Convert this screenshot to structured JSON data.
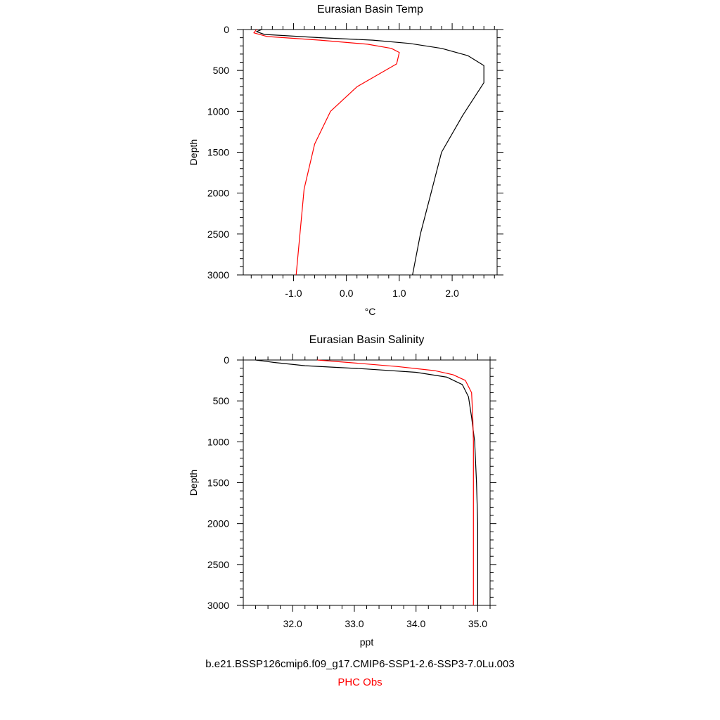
{
  "chart_data": [
    {
      "type": "line",
      "title": "Eurasian Basin Temp",
      "xlabel": "°C",
      "ylabel": "Depth",
      "xlim": [
        -1.95,
        2.85
      ],
      "ylim": [
        3000,
        0
      ],
      "y_inverted": true,
      "xticks": [
        -1.0,
        0.0,
        1.0,
        2.0
      ],
      "xtick_labels": [
        "-1.0",
        "0.0",
        "1.0",
        "2.0"
      ],
      "yticks": [
        0,
        500,
        1000,
        1500,
        2000,
        2500,
        3000
      ],
      "ytick_labels": [
        "0",
        "500",
        "1000",
        "1500",
        "2000",
        "2500",
        "3000"
      ],
      "grid": false,
      "series": [
        {
          "name": "b.e21.BSSP126cmip6.f09_g17.CMIP6-SSP1-2.6-SSP3-7.0Lu.003",
          "color": "#000000",
          "points": [
            [
              -1.6,
              0
            ],
            [
              -1.7,
              25
            ],
            [
              -1.55,
              60
            ],
            [
              -0.5,
              100
            ],
            [
              0.5,
              130
            ],
            [
              1.2,
              170
            ],
            [
              1.8,
              230
            ],
            [
              2.3,
              320
            ],
            [
              2.6,
              440
            ],
            [
              2.6,
              650
            ],
            [
              2.2,
              1050
            ],
            [
              1.8,
              1500
            ],
            [
              1.6,
              2000
            ],
            [
              1.4,
              2500
            ],
            [
              1.25,
              3000
            ]
          ]
        },
        {
          "name": "PHC Obs",
          "color": "#ff0000",
          "points": [
            [
              -1.7,
              0
            ],
            [
              -1.75,
              40
            ],
            [
              -1.5,
              85
            ],
            [
              -0.5,
              130
            ],
            [
              0.4,
              180
            ],
            [
              0.85,
              230
            ],
            [
              1.0,
              280
            ],
            [
              0.95,
              420
            ],
            [
              0.2,
              700
            ],
            [
              -0.3,
              1000
            ],
            [
              -0.6,
              1400
            ],
            [
              -0.8,
              1950
            ],
            [
              -0.95,
              3000
            ]
          ]
        }
      ]
    },
    {
      "type": "line",
      "title": "Eurasian Basin Salinity",
      "xlabel": "ppt",
      "ylabel": "Depth",
      "xlim": [
        31.2,
        35.2
      ],
      "ylim": [
        3000,
        0
      ],
      "y_inverted": true,
      "xticks": [
        32.0,
        33.0,
        34.0,
        35.0
      ],
      "xtick_labels": [
        "32.0",
        "33.0",
        "34.0",
        "35.0"
      ],
      "yticks": [
        0,
        500,
        1000,
        1500,
        2000,
        2500,
        3000
      ],
      "ytick_labels": [
        "0",
        "500",
        "1000",
        "1500",
        "2000",
        "2500",
        "3000"
      ],
      "grid": false,
      "series": [
        {
          "name": "b.e21.BSSP126cmip6.f09_g17.CMIP6-SSP1-2.6-SSP3-7.0Lu.003",
          "color": "#000000",
          "points": [
            [
              31.4,
              0
            ],
            [
              31.7,
              30
            ],
            [
              32.2,
              70
            ],
            [
              33.2,
              110
            ],
            [
              34.0,
              150
            ],
            [
              34.5,
              210
            ],
            [
              34.75,
              300
            ],
            [
              34.85,
              450
            ],
            [
              34.9,
              700
            ],
            [
              34.95,
              1000
            ],
            [
              34.98,
              1500
            ],
            [
              35.0,
              2000
            ],
            [
              35.0,
              3000
            ]
          ]
        },
        {
          "name": "PHC Obs",
          "color": "#ff0000",
          "points": [
            [
              32.4,
              0
            ],
            [
              32.9,
              30
            ],
            [
              33.7,
              80
            ],
            [
              34.3,
              130
            ],
            [
              34.6,
              180
            ],
            [
              34.8,
              250
            ],
            [
              34.9,
              400
            ],
            [
              34.92,
              700
            ],
            [
              34.93,
              1000
            ],
            [
              34.93,
              2000
            ],
            [
              34.93,
              3000
            ]
          ]
        }
      ]
    }
  ],
  "legend": {
    "model_label": "b.e21.BSSP126cmip6.f09_g17.CMIP6-SSP1-2.6-SSP3-7.0Lu.003",
    "model_color": "#000000",
    "obs_label": "PHC Obs",
    "obs_color": "#ff0000"
  }
}
